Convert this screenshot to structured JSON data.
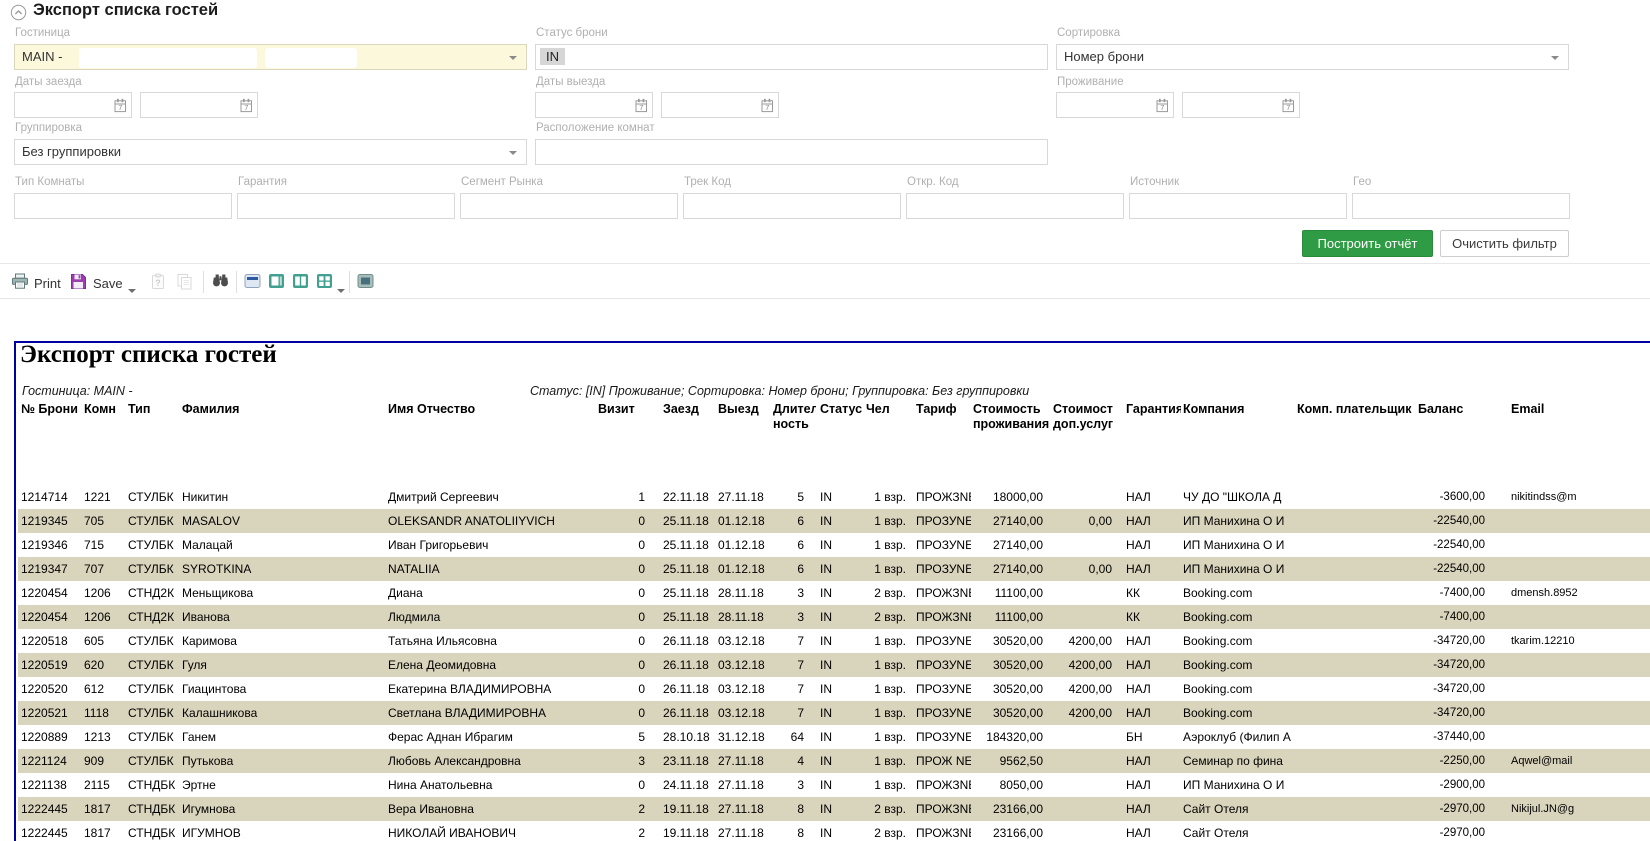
{
  "page": {
    "title": "Экспорт списка гостей"
  },
  "filters": {
    "hotel": {
      "label": "Гостиница",
      "value": "MAIN -"
    },
    "status": {
      "label": "Статус брони",
      "chip": "IN"
    },
    "sort": {
      "label": "Сортировка",
      "value": "Номер брони"
    },
    "arrival": {
      "label": "Даты заезда"
    },
    "departure": {
      "label": "Даты выезда"
    },
    "stay": {
      "label": "Проживание"
    },
    "grouping": {
      "label": "Группировка",
      "value": "Без группировки"
    },
    "room_location": {
      "label": "Расположение комнат"
    },
    "extra": [
      {
        "label": "Тип Комнаты"
      },
      {
        "label": "Гарантия"
      },
      {
        "label": "Сегмент Рынка"
      },
      {
        "label": "Трек Код"
      },
      {
        "label": "Откр. Код"
      },
      {
        "label": "Источник"
      },
      {
        "label": "Гео"
      }
    ]
  },
  "actions": {
    "build_report": "Построить отчёт",
    "clear_filter": "Очистить фильтр"
  },
  "toolbar": {
    "print": "Print",
    "save": "Save",
    "icons": [
      "printer-icon",
      "save-floppy-icon",
      "paste-check-icon",
      "copy-icon",
      "find-binoculars-icon",
      "view-page-header-icon",
      "view-single-page-icon",
      "view-two-pages-icon",
      "view-grid-icon",
      "view-page-width-icon",
      "collapse-panel-icon",
      "calendar-icon",
      "dropdown-caret-icon"
    ]
  },
  "report": {
    "title": "Экспорт списка гостей",
    "subtitle_left": "Гостиница: MAIN -",
    "subtitle_right": "Статус: [IN] Проживание; Сортировка: Номер брони; Группировка: Без группировки",
    "columns": [
      {
        "l1": "№ Брони"
      },
      {
        "l1": "Комн"
      },
      {
        "l1": "Тип"
      },
      {
        "l1": "Фамилия"
      },
      {
        "l1": "Имя Отчество"
      },
      {
        "l1": "Визит"
      },
      {
        "l1": "Заезд"
      },
      {
        "l1": "Выезд"
      },
      {
        "l1": "Длитель",
        "l2": "ность"
      },
      {
        "l1": "Статус"
      },
      {
        "l1": "Чел"
      },
      {
        "l1": "Тариф"
      },
      {
        "l1": "Стоимость",
        "l2": "проживания"
      },
      {
        "l1": "Стоимость",
        "l2": "доп.услуг"
      },
      {
        "l1": "Гарантия"
      },
      {
        "l1": "Компания"
      },
      {
        "l1": "Комп. плательщик"
      },
      {
        "l1": "Баланс"
      },
      {
        "l1": "Email"
      }
    ],
    "rows": [
      [
        "1214714",
        "1221",
        "СТУЛБК",
        "Никитин",
        "Дмитрий Сергеевич",
        "1",
        "22.11.18",
        "27.11.18",
        "5",
        "IN",
        "1 взр.",
        "ПРОЖЗNEW",
        "18000,00",
        "",
        "НАЛ",
        "ЧУ ДО \"ШКОЛА Д",
        "",
        "-3600,00",
        "nikitindss@m"
      ],
      [
        "1219345",
        "705",
        "СТУЛБК",
        "MASALOV",
        "OLEKSANDR ANATOLIIYVICH",
        "0",
        "25.11.18",
        "01.12.18",
        "6",
        "IN",
        "1 взр.",
        "ПРОЗУNEW",
        "27140,00",
        "0,00",
        "НАЛ",
        "ИП Манихина О И",
        "",
        "-22540,00",
        ""
      ],
      [
        "1219346",
        "715",
        "СТУЛБК",
        "Малацай",
        "Иван Григорьевич",
        "0",
        "25.11.18",
        "01.12.18",
        "6",
        "IN",
        "1 взр.",
        "ПРОЗУNEW",
        "27140,00",
        "",
        "НАЛ",
        "ИП Манихина О И",
        "",
        "-22540,00",
        ""
      ],
      [
        "1219347",
        "707",
        "СТУЛБК",
        "SYROTKINA",
        "NATALIIA",
        "0",
        "25.11.18",
        "01.12.18",
        "6",
        "IN",
        "1 взр.",
        "ПРОЗУNEW",
        "27140,00",
        "0,00",
        "НАЛ",
        "ИП Манихина О И",
        "",
        "-22540,00",
        ""
      ],
      [
        "1220454",
        "1206",
        "СТНД2К",
        "Меньщикова",
        "Диана",
        "0",
        "25.11.18",
        "28.11.18",
        "3",
        "IN",
        "2 взр.",
        "ПРОЖЗNEW",
        "11100,00",
        "",
        "КК",
        "Booking.com",
        "",
        "-7400,00",
        "dmensh.8952"
      ],
      [
        "1220454",
        "1206",
        "СТНД2К",
        "Иванова",
        "Людмила",
        "0",
        "25.11.18",
        "28.11.18",
        "3",
        "IN",
        "2 взр.",
        "ПРОЖЗNEW",
        "11100,00",
        "",
        "КК",
        "Booking.com",
        "",
        "-7400,00",
        ""
      ],
      [
        "1220518",
        "605",
        "СТУЛБК",
        "Каримова",
        "Татьяна Ильясовна",
        "0",
        "26.11.18",
        "03.12.18",
        "7",
        "IN",
        "1 взр.",
        "ПРОЗУNEW",
        "30520,00",
        "4200,00",
        "НАЛ",
        "Booking.com",
        "",
        "-34720,00",
        "tkarim.12210"
      ],
      [
        "1220519",
        "620",
        "СТУЛБК",
        "Гуля",
        "Елена Деомидовна",
        "0",
        "26.11.18",
        "03.12.18",
        "7",
        "IN",
        "1 взр.",
        "ПРОЗУNEW",
        "30520,00",
        "4200,00",
        "НАЛ",
        "Booking.com",
        "",
        "-34720,00",
        ""
      ],
      [
        "1220520",
        "612",
        "СТУЛБК",
        "Гиацинтова",
        "Екатерина ВЛАДИМИРОВНА",
        "0",
        "26.11.18",
        "03.12.18",
        "7",
        "IN",
        "1 взр.",
        "ПРОЗУNEW",
        "30520,00",
        "4200,00",
        "НАЛ",
        "Booking.com",
        "",
        "-34720,00",
        ""
      ],
      [
        "1220521",
        "1118",
        "СТУЛБК",
        "Калашникова",
        "Светлана ВЛАДИМИРОВНА",
        "0",
        "26.11.18",
        "03.12.18",
        "7",
        "IN",
        "1 взр.",
        "ПРОЗУNEW",
        "30520,00",
        "4200,00",
        "НАЛ",
        "Booking.com",
        "",
        "-34720,00",
        ""
      ],
      [
        "1220889",
        "1213",
        "СТУЛБК",
        "Ганем",
        "Ферас Аднан Ибрагим",
        "5",
        "28.10.18",
        "31.12.18",
        "64",
        "IN",
        "1 взр.",
        "ПРОЗУNEW",
        "184320,00",
        "",
        "БН",
        "Аэроклуб (Филип Аэроклуб",
        "",
        "-37440,00",
        ""
      ],
      [
        "1221124",
        "909",
        "СТУЛБК",
        "Путькова",
        "Любовь Александровна",
        "3",
        "23.11.18",
        "27.11.18",
        "4",
        "IN",
        "1 взр.",
        "ПРОЖ NEW",
        "9562,50",
        "",
        "НАЛ",
        "Семинар по фина",
        "",
        "-2250,00",
        "Aqwel@mail"
      ],
      [
        "1221138",
        "2115",
        "СТНДБК",
        "Эртне",
        "Нина Анатольевна",
        "0",
        "24.11.18",
        "27.11.18",
        "3",
        "IN",
        "1 взр.",
        "ПРОЖЗNEW",
        "8050,00",
        "",
        "НАЛ",
        "ИП Манихина О И",
        "",
        "-2900,00",
        ""
      ],
      [
        "1222445",
        "1817",
        "СТНДБК",
        "Игумнова",
        "Вера Ивановна",
        "2",
        "19.11.18",
        "27.11.18",
        "8",
        "IN",
        "2 взр.",
        "ПРОЖЗNEW",
        "23166,00",
        "",
        "НАЛ",
        "Сайт Отеля",
        "",
        "-2970,00",
        "Nikijul.JN@g"
      ],
      [
        "1222445",
        "1817",
        "СТНДБК",
        "ИГУМНОВ",
        "НИКОЛАЙ ИВАНОВИЧ",
        "2",
        "19.11.18",
        "27.11.18",
        "8",
        "IN",
        "2 взр.",
        "ПРОЖЗNEW",
        "23166,00",
        "",
        "НАЛ",
        "Сайт Отеля",
        "",
        "-2970,00",
        ""
      ]
    ]
  },
  "colors": {
    "accent_green": "#2f9b44",
    "field_yellow": "#fcf8dc",
    "row_alt_beige": "#d9d4bc",
    "report_border_blue": "#0000a0",
    "save_purple": "#9b3fae",
    "toolbar_teal": "#41a08f"
  }
}
